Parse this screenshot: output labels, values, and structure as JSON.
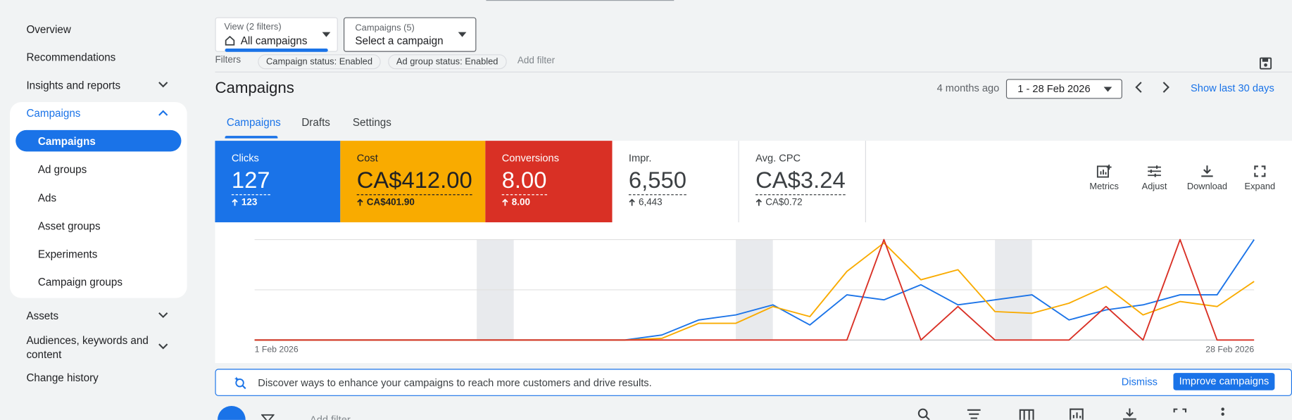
{
  "sidebar": {
    "items": [
      "Overview",
      "Recommendations",
      "Insights and reports",
      "Campaigns",
      "Campaigns",
      "Ad groups",
      "Ads",
      "Asset groups",
      "Experiments",
      "Campaign groups",
      "Assets",
      "Audiences, keywords and content",
      "Change history"
    ]
  },
  "toolbar": {
    "view_label": "View (2 filters)",
    "view_value": "All campaigns",
    "campaigns_label": "Campaigns (5)",
    "campaigns_value": "Select a campaign"
  },
  "filters": {
    "label": "Filters",
    "chips": [
      "Campaign status: Enabled",
      "Ad group status: Enabled"
    ],
    "add": "Add filter"
  },
  "header": {
    "title": "Campaigns",
    "ago": "4 months ago",
    "date_range": "1 - 28 Feb 2026",
    "show_last": "Show last 30 days"
  },
  "tabs": [
    "Campaigns",
    "Drafts",
    "Settings"
  ],
  "metrics": [
    {
      "label": "Clicks",
      "value": "127",
      "change": "123"
    },
    {
      "label": "Cost",
      "value": "CA$412.00",
      "change": "CA$401.90"
    },
    {
      "label": "Conversions",
      "value": "8.00",
      "change": "8.00"
    },
    {
      "label": "Impr.",
      "value": "6,550",
      "change": "6,443"
    },
    {
      "label": "Avg. CPC",
      "value": "CA$3.24",
      "change": "CA$0.72"
    }
  ],
  "chart_tools": [
    "Metrics",
    "Adjust",
    "Download",
    "Expand"
  ],
  "chart_data": {
    "type": "line",
    "categories": [
      "1 Feb 2026",
      null,
      null,
      null,
      null,
      null,
      null,
      null,
      null,
      null,
      null,
      null,
      null,
      null,
      null,
      null,
      null,
      null,
      null,
      null,
      null,
      null,
      null,
      null,
      null,
      null,
      null,
      "28 Feb 2026"
    ],
    "series": [
      {
        "name": "Clicks",
        "color": "#1a73e8",
        "ylim": [
          0,
          20
        ],
        "values": [
          0,
          0,
          0,
          0,
          0,
          0,
          0,
          0,
          0,
          0,
          0,
          1,
          4,
          5,
          7,
          3,
          9,
          8,
          11,
          7,
          8,
          9,
          4,
          6,
          7,
          9,
          9,
          20
        ]
      },
      {
        "name": "Cost",
        "color": "#f9ab00",
        "ylim": [
          0,
          60
        ],
        "values": [
          0,
          0,
          0,
          0,
          0,
          0,
          0,
          0,
          0,
          0,
          0,
          1,
          10,
          10,
          20,
          14,
          41,
          58,
          36,
          42,
          17,
          16,
          22,
          32,
          15,
          23,
          20,
          35
        ]
      },
      {
        "name": "Conversions",
        "color": "#d93025",
        "ylim": [
          0,
          3
        ],
        "values": [
          0,
          0,
          0,
          0,
          0,
          0,
          0,
          0,
          0,
          0,
          0,
          0,
          0,
          0,
          0,
          0,
          0,
          3,
          0,
          1,
          0,
          0,
          0,
          1,
          0,
          3,
          0,
          0
        ]
      }
    ]
  },
  "banner": {
    "text": "Discover ways to enhance your campaigns to reach more customers and drive results.",
    "dismiss": "Dismiss",
    "action": "Improve campaigns"
  },
  "table_toolbar": {
    "add_filter": "Add filter"
  }
}
